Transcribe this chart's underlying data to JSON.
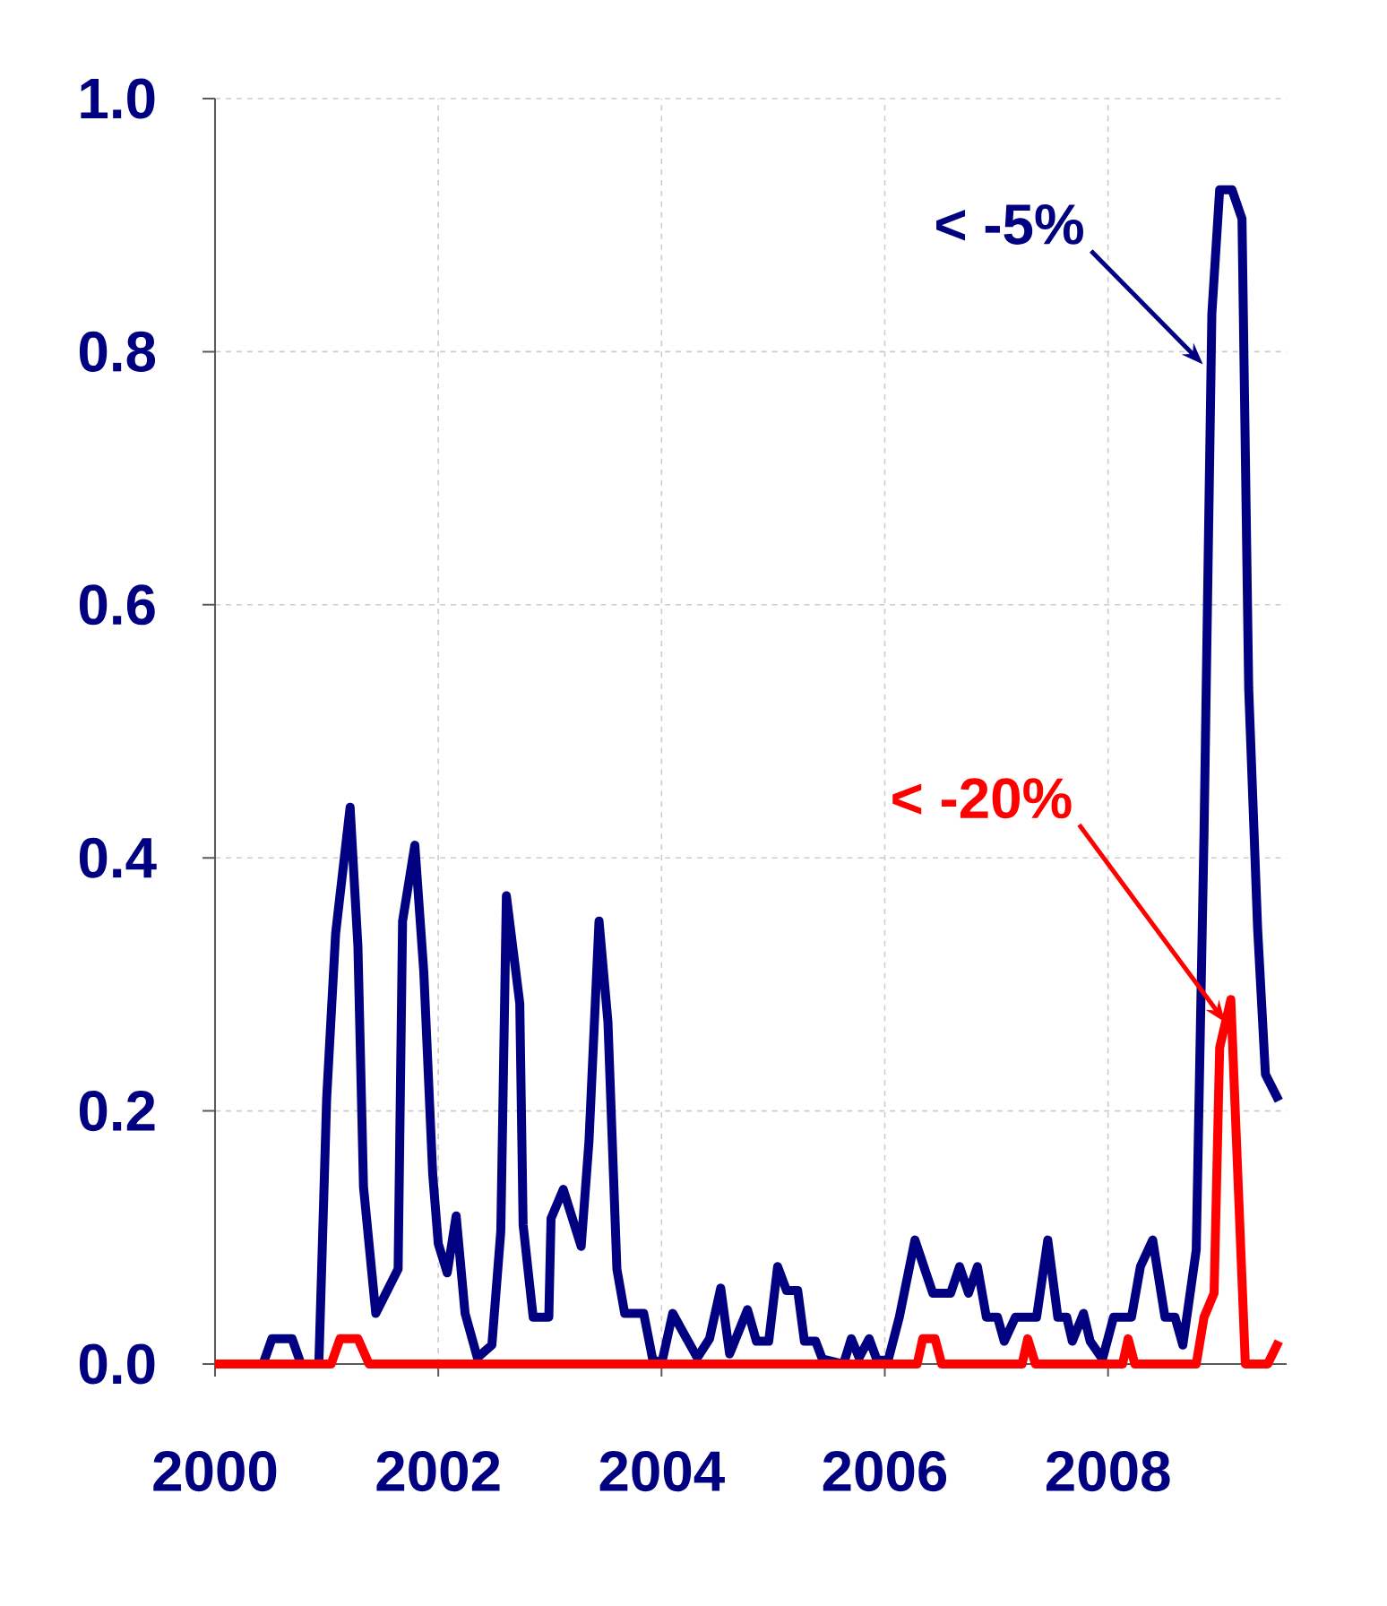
{
  "chart_data": {
    "type": "line",
    "xlim": [
      2000,
      2009.6
    ],
    "ylim": [
      0,
      1
    ],
    "xticks": [
      2000,
      2002,
      2004,
      2006,
      2008
    ],
    "yticks": [
      {
        "value": 0,
        "label": "0.0"
      },
      {
        "value": 0.2,
        "label": "0.2"
      },
      {
        "value": 0.4,
        "label": "0.4"
      },
      {
        "value": 0.6,
        "label": "0.6"
      },
      {
        "value": 0.8,
        "label": "0.8"
      },
      {
        "value": 1.0,
        "label": "1.0"
      }
    ],
    "grid": true,
    "series": [
      {
        "color": "#000080",
        "x": [
          2000,
          2000.43,
          2000.51,
          2000.69,
          2000.77,
          2000.93,
          2001.0,
          2001.08,
          2001.21,
          2001.28,
          2001.33,
          2001.44,
          2001.64,
          2001.68,
          2001.79,
          2001.87,
          2001.95,
          2002.0,
          2002.08,
          2002.16,
          2002.24,
          2002.35,
          2002.48,
          2002.56,
          2002.61,
          2002.73,
          2002.76,
          2002.85,
          2002.99,
          2003.01,
          2003.12,
          2003.28,
          2003.35,
          2003.44,
          2003.52,
          2003.6,
          2003.67,
          2003.84,
          2003.92,
          2004.0,
          2004.1,
          2004.32,
          2004.43,
          2004.53,
          2004.61,
          2004.77,
          2004.85,
          2004.96,
          2005.04,
          2005.12,
          2005.22,
          2005.28,
          2005.38,
          2005.44,
          2005.63,
          2005.7,
          2005.77,
          2005.86,
          2005.93,
          2006.03,
          2006.13,
          2006.27,
          2006.43,
          2006.59,
          2006.67,
          2006.75,
          2006.83,
          2006.91,
          2007.01,
          2007.07,
          2007.17,
          2007.36,
          2007.46,
          2007.55,
          2007.63,
          2007.68,
          2007.78,
          2007.84,
          2007.95,
          2008.05,
          2008.21,
          2008.29,
          2008.4,
          2008.51,
          2008.6,
          2008.67,
          2008.79,
          2008.86,
          2008.93,
          2009.0,
          2009.11,
          2009.2,
          2009.26,
          2009.34,
          2009.41,
          2009.53
        ],
        "values": [
          0,
          0,
          0.02,
          0.02,
          0,
          0,
          0.21,
          0.34,
          0.44,
          0.33,
          0.14,
          0.04,
          0.075,
          0.35,
          0.41,
          0.31,
          0.15,
          0.095,
          0.072,
          0.117,
          0.04,
          0.005,
          0.015,
          0.105,
          0.37,
          0.285,
          0.11,
          0.037,
          0.037,
          0.115,
          0.138,
          0.093,
          0.176,
          0.35,
          0.27,
          0.075,
          0.04,
          0.04,
          0.004,
          0,
          0.04,
          0.005,
          0.02,
          0.06,
          0.008,
          0.043,
          0.018,
          0.018,
          0.077,
          0.058,
          0.058,
          0.018,
          0.018,
          0.004,
          0,
          0.02,
          0.005,
          0.02,
          0.003,
          0.003,
          0.037,
          0.098,
          0.056,
          0.056,
          0.077,
          0.056,
          0.077,
          0.037,
          0.037,
          0.018,
          0.037,
          0.037,
          0.098,
          0.037,
          0.037,
          0.018,
          0.04,
          0.018,
          0.004,
          0.037,
          0.037,
          0.077,
          0.098,
          0.037,
          0.037,
          0.015,
          0.09,
          0.42,
          0.83,
          0.928,
          0.928,
          0.905,
          0.534,
          0.344,
          0.229,
          0.208
        ]
      },
      {
        "color": "#ff0000",
        "x": [
          2000,
          2001.04,
          2001.12,
          2001.28,
          2001.38,
          2006.29,
          2006.34,
          2006.45,
          2006.51,
          2007.23,
          2007.28,
          2007.35,
          2008.13,
          2008.18,
          2008.24,
          2008.79,
          2008.86,
          2008.95,
          2009.0,
          2009.1,
          2009.23,
          2009.43,
          2009.53
        ],
        "values": [
          0,
          0,
          0.02,
          0.02,
          0,
          0,
          0.02,
          0.02,
          0,
          0,
          0.02,
          0,
          0,
          0.02,
          0,
          0,
          0.037,
          0.056,
          0.25,
          0.288,
          0,
          0,
          0.018
        ]
      }
    ],
    "annotations": [
      {
        "text": "< -5%",
        "x": 2008.85,
        "y": 0.79
      },
      {
        "text": "< -20%",
        "x": 2009.05,
        "y": 0.27
      }
    ]
  }
}
